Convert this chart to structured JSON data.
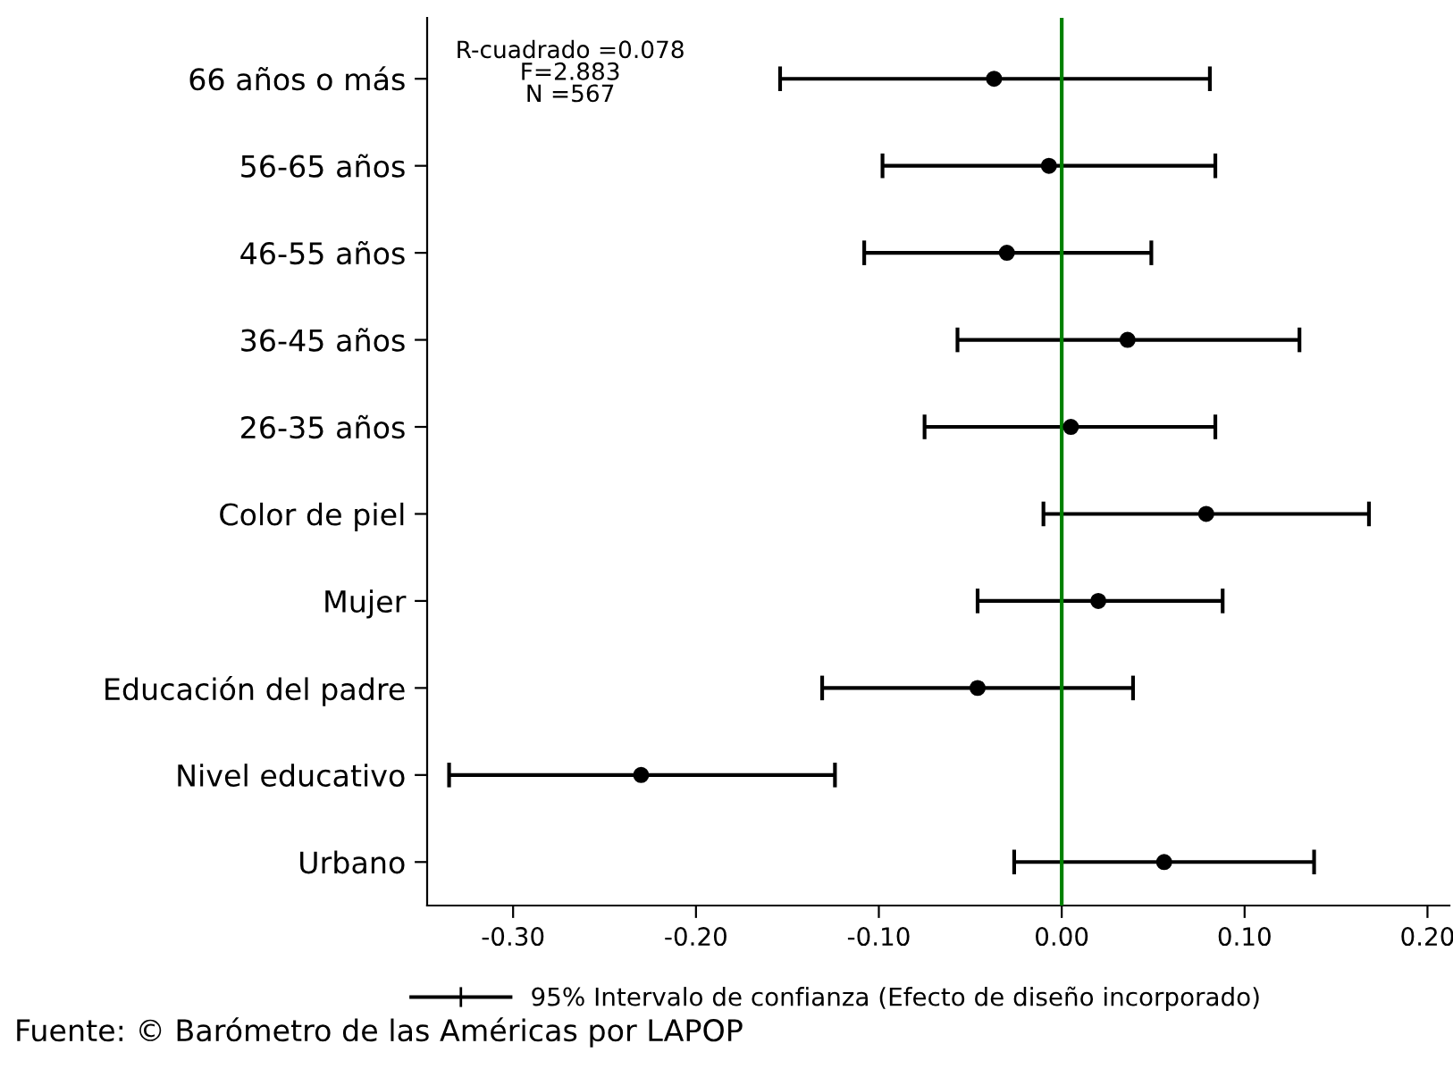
{
  "chart_data": {
    "type": "scatter",
    "orientation": "horizontal",
    "categories": [
      "66 años o más",
      "56-65 años",
      "46-55 años",
      "36-45 años",
      "26-35 años",
      "Color de piel",
      "Mujer",
      "Educación del padre",
      "Nivel educativo",
      "Urbano"
    ],
    "series": [
      {
        "name": "95% Intervalo de confianza (Efecto de diseño incorporado)",
        "color": "#000000",
        "values": [
          -0.037,
          -0.007,
          -0.03,
          0.036,
          0.005,
          0.079,
          0.02,
          -0.046,
          -0.23,
          0.056
        ],
        "errors": [
          [
            -0.154,
            0.081
          ],
          [
            -0.098,
            0.084
          ],
          [
            -0.108,
            0.049
          ],
          [
            -0.057,
            0.13
          ],
          [
            -0.075,
            0.084
          ],
          [
            -0.01,
            0.168
          ],
          [
            -0.046,
            0.088
          ],
          [
            -0.131,
            0.039
          ],
          [
            -0.335,
            -0.124
          ],
          [
            -0.026,
            0.138
          ]
        ]
      }
    ],
    "xlim": [
      -0.347,
      0.212
    ],
    "xticks": [
      {
        "value": -0.3,
        "label": "-0.30"
      },
      {
        "value": -0.2,
        "label": "-0.20"
      },
      {
        "value": -0.1,
        "label": "-0.10"
      },
      {
        "value": 0.0,
        "label": "0.00"
      },
      {
        "value": 0.1,
        "label": "0.10"
      },
      {
        "value": 0.2,
        "label": "0.20"
      }
    ],
    "ref_lines": [
      {
        "axis": "x",
        "value": 0.0,
        "color": "#008000"
      }
    ],
    "marker": "circle",
    "grid": false,
    "legend": "bottom",
    "annotations": [
      "R-cuadrado =0.078\nF=2.883\nN =567",
      "Fuente: © Barómetro de las Américas por LAPOP"
    ]
  }
}
